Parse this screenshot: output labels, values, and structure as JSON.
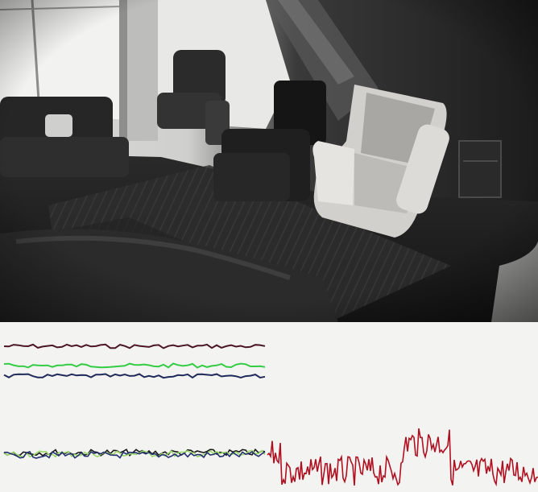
{
  "scene": {
    "kind": "security-camera-frame",
    "subject": "living-room",
    "colors": {
      "wall_dark": "#222222",
      "window_light": "#f4f4f2",
      "chair_light": "#c8c6c2",
      "signal_bg": "#f3f3f1"
    }
  },
  "signals": {
    "upper_group": [
      {
        "color": "#4a1624"
      },
      {
        "color": "#33cc44"
      },
      {
        "color": "#1f2a5a"
      }
    ],
    "lower_group": [
      {
        "color": "#1a1a1a"
      },
      {
        "color": "#9bd86a"
      },
      {
        "color": "#243070"
      }
    ],
    "live_trace": {
      "color": "#b01020"
    }
  }
}
